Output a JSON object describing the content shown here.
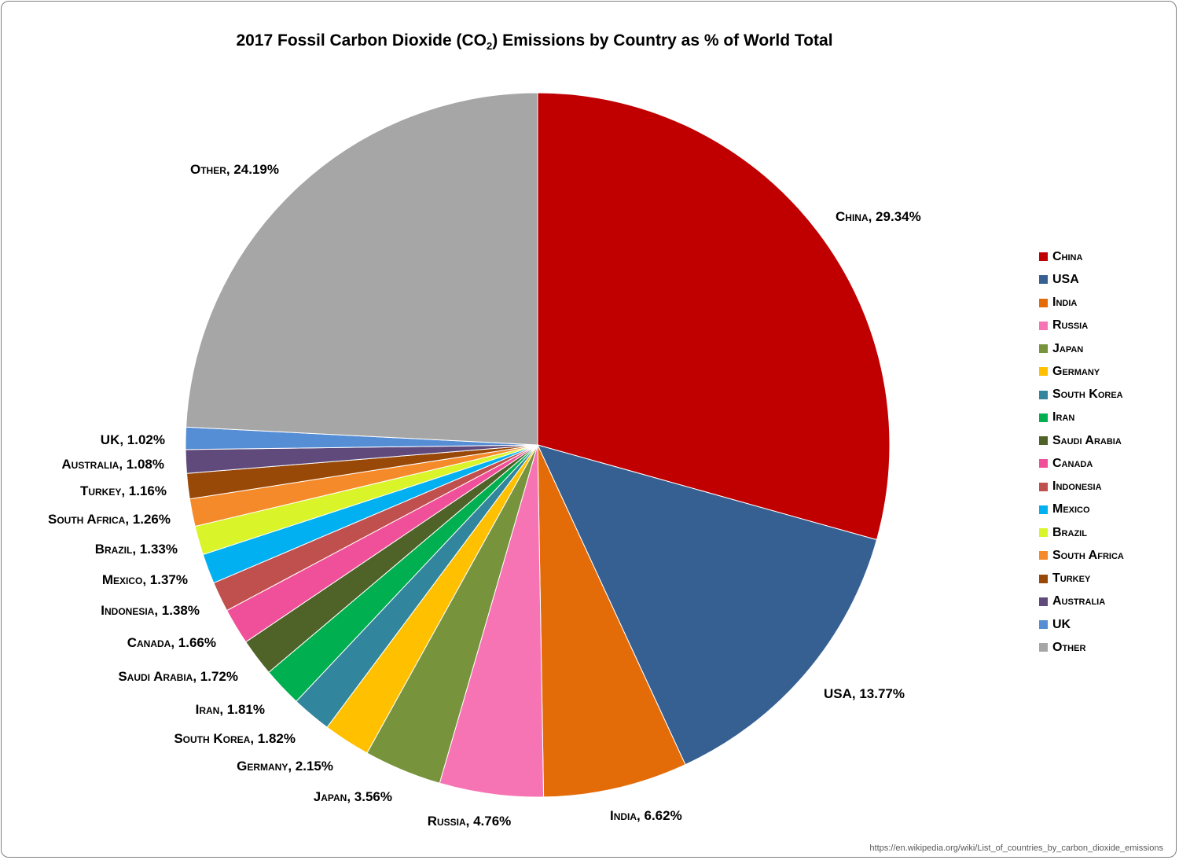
{
  "chart_data": {
    "type": "pie",
    "title_parts": {
      "before": "2017 Fossil Carbon Dioxide (CO",
      "subscript": "2",
      "after": ") Emissions by Country as % of World Total"
    },
    "legend_position": "right",
    "value_suffix": "%",
    "slices": [
      {
        "label": "China",
        "value": 29.34,
        "value_text": "29.34%",
        "color": "#c00000"
      },
      {
        "label": "USA",
        "value": 13.77,
        "value_text": "13.77%",
        "color": "#376092"
      },
      {
        "label": "India",
        "value": 6.62,
        "value_text": "6.62%",
        "color": "#e36c09"
      },
      {
        "label": "Russia",
        "value": 4.76,
        "value_text": "4.76%",
        "color": "#f774b4"
      },
      {
        "label": "Japan",
        "value": 3.56,
        "value_text": "3.56%",
        "color": "#77933c"
      },
      {
        "label": "Germany",
        "value": 2.15,
        "value_text": "2.15%",
        "color": "#ffc000"
      },
      {
        "label": "South Korea",
        "value": 1.82,
        "value_text": "1.82%",
        "color": "#31859c"
      },
      {
        "label": "Iran",
        "value": 1.81,
        "value_text": "1.81%",
        "color": "#00b050"
      },
      {
        "label": "Saudi Arabia",
        "value": 1.72,
        "value_text": "1.72%",
        "color": "#4f6228"
      },
      {
        "label": "Canada",
        "value": 1.66,
        "value_text": "1.66%",
        "color": "#f0509a"
      },
      {
        "label": "Indonesia",
        "value": 1.38,
        "value_text": "1.38%",
        "color": "#c0504d"
      },
      {
        "label": "Mexico",
        "value": 1.37,
        "value_text": "1.37%",
        "color": "#00b0f0"
      },
      {
        "label": "Brazil",
        "value": 1.33,
        "value_text": "1.33%",
        "color": "#d9f52a"
      },
      {
        "label": "South Africa",
        "value": 1.26,
        "value_text": "1.26%",
        "color": "#f58a2a"
      },
      {
        "label": "Turkey",
        "value": 1.16,
        "value_text": "1.16%",
        "color": "#984807"
      },
      {
        "label": "Australia",
        "value": 1.08,
        "value_text": "1.08%",
        "color": "#604a7b"
      },
      {
        "label": "UK",
        "value": 1.02,
        "value_text": "1.02%",
        "color": "#558ed5"
      },
      {
        "label": "Other",
        "value": 24.19,
        "value_text": "24.19%",
        "color": "#a6a6a6"
      }
    ]
  },
  "source_url": "https://en.wikipedia.org/wiki/List_of_countries_by_carbon_dioxide_emissions"
}
